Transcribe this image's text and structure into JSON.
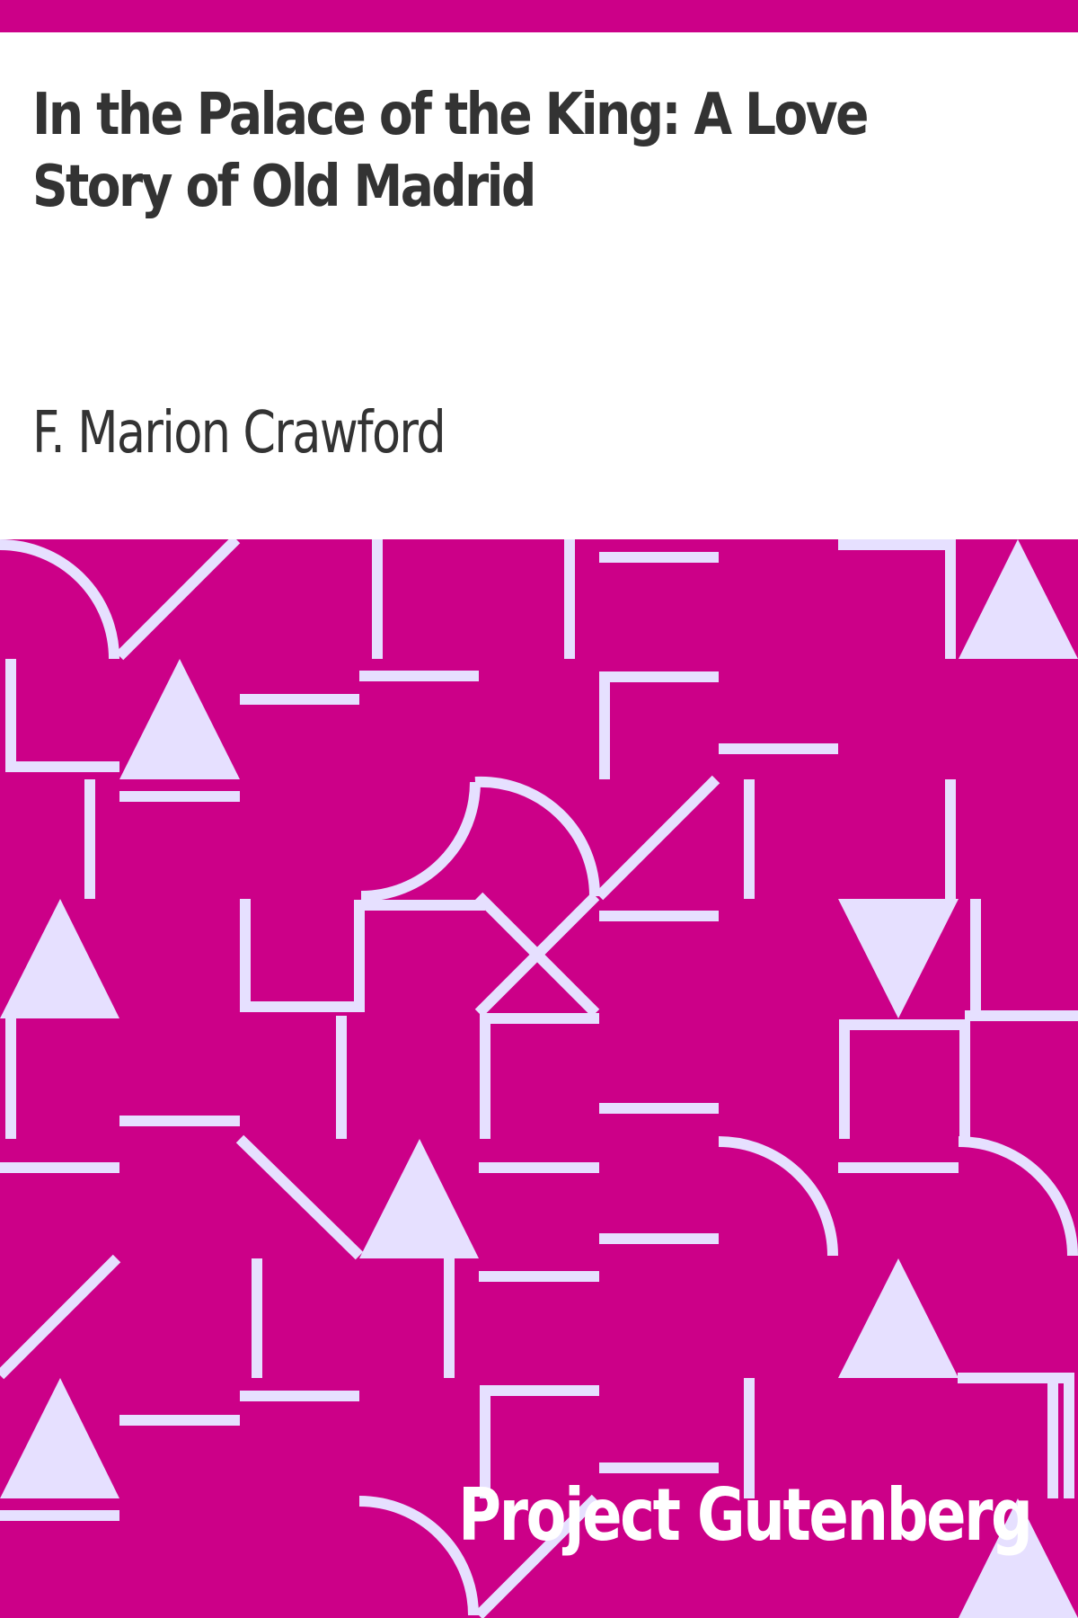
{
  "cover": {
    "title": "In the Palace of the King: A Love Story of Old Madrid",
    "author": "F. Marion Crawford",
    "publisher_logo": "Project Gutenberg"
  },
  "colors": {
    "accent": "#cc0088",
    "pattern_line": "#e6e0ff",
    "text": "#333333",
    "background": "#ffffff",
    "logo_text": "#ffffff"
  }
}
